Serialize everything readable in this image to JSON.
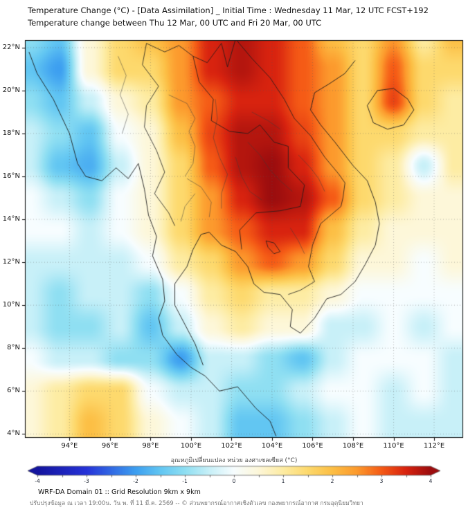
{
  "header": {
    "title_line1": "Temperature Change (°C) - [Data Assimilation] _ Initial Time : Wednesday 11 Mar, 12 UTC FCST+192",
    "title_line2": "Temperature change between Thu 12 Mar, 00 UTC and Fri 20 Mar, 00 UTC"
  },
  "footer": {
    "line1": "WRF-DA Domain 01 :: Grid Resolution 9km x 9km",
    "line2": "ปรับปรุงข้อมูล ณ เวลา 19:00น. วัน พ. ที่ 11 มี.ค. 2569 -- © ส่วนพยากรณ์อากาศเชิงตัวเลข กองพยากรณ์อากาศ กรมอุตุนิยมวิทยา"
  },
  "chart_data": {
    "type": "heatmap",
    "title": "Temperature Change (°C) - [Data Assimilation] _ Initial Time : Wednesday 11 Mar, 12 UTC FCST+192",
    "subtitle": "Temperature change between Thu 12 Mar, 00 UTC and Fri 20 Mar, 00 UTC",
    "units": "°C",
    "grid_on": true,
    "x_axis": {
      "label": "",
      "tick_suffix": "°E",
      "ticks": [
        94,
        96,
        98,
        100,
        102,
        104,
        106,
        108,
        110,
        112
      ],
      "range": [
        91.8,
        113.4
      ]
    },
    "y_axis": {
      "label": "",
      "tick_suffix": "°N",
      "ticks": [
        4,
        6,
        8,
        10,
        12,
        14,
        16,
        18,
        20,
        22
      ],
      "range": [
        3.85,
        22.35
      ]
    },
    "grid": {
      "lons": [
        92,
        93.5,
        95,
        96.5,
        98,
        99.5,
        101,
        102.5,
        104,
        105.5,
        107,
        108.5,
        110,
        111.5,
        113
      ],
      "lats": [
        22.5,
        21,
        19.5,
        18,
        16.5,
        15,
        13.5,
        12,
        10.5,
        9,
        7.5,
        6,
        4.5,
        3
      ]
    },
    "values": [
      [
        -1.0,
        -1.5,
        0.5,
        1.5,
        2.0,
        2.5,
        3.5,
        3.8,
        3.5,
        3.0,
        2.0,
        1.5,
        2.5,
        1.0,
        2.0
      ],
      [
        -1.5,
        -2.0,
        0.5,
        1.5,
        1.5,
        2.5,
        3.5,
        3.8,
        3.5,
        3.0,
        2.5,
        1.5,
        3.0,
        1.5,
        1.5
      ],
      [
        -1.0,
        -1.5,
        -0.5,
        0.5,
        1.0,
        2.5,
        3.0,
        3.5,
        3.5,
        3.0,
        2.5,
        1.5,
        3.2,
        1.5,
        1.0
      ],
      [
        -0.5,
        -1.0,
        -1.5,
        0.0,
        0.5,
        2.0,
        3.2,
        3.8,
        3.8,
        3.2,
        2.5,
        1.5,
        1.5,
        1.0,
        1.0
      ],
      [
        -0.5,
        -1.5,
        -1.8,
        -0.5,
        0.5,
        1.5,
        3.0,
        3.8,
        4.0,
        3.5,
        2.5,
        1.5,
        1.0,
        -0.5,
        1.0
      ],
      [
        0.0,
        -0.5,
        -1.0,
        0.0,
        0.5,
        1.5,
        2.5,
        3.5,
        4.0,
        3.8,
        3.0,
        1.5,
        1.0,
        0.5,
        0.5
      ],
      [
        0.0,
        0.0,
        -0.5,
        0.0,
        0.5,
        1.5,
        2.5,
        3.0,
        3.5,
        3.5,
        2.0,
        1.0,
        0.5,
        0.5,
        0.5
      ],
      [
        -0.5,
        -0.5,
        -0.5,
        -0.5,
        0.0,
        1.0,
        1.5,
        2.5,
        3.0,
        2.5,
        1.5,
        0.5,
        0.5,
        0.0,
        0.5
      ],
      [
        -0.5,
        -1.0,
        -0.5,
        -0.5,
        -1.0,
        0.0,
        1.0,
        1.5,
        1.0,
        1.0,
        0.5,
        0.0,
        0.0,
        0.0,
        0.0
      ],
      [
        -0.5,
        -1.0,
        -1.0,
        -0.5,
        -1.5,
        -0.5,
        0.5,
        1.0,
        0.5,
        0.5,
        -0.5,
        -0.5,
        0.0,
        -0.5,
        0.0
      ],
      [
        0.0,
        -0.5,
        -0.5,
        -1.0,
        -1.0,
        -2.0,
        -0.5,
        -0.5,
        -1.0,
        -1.5,
        -0.5,
        0.0,
        0.0,
        0.0,
        -0.5
      ],
      [
        0.5,
        1.0,
        1.5,
        1.5,
        0.0,
        -0.5,
        -0.5,
        -1.0,
        -1.0,
        -0.5,
        0.0,
        0.0,
        -0.5,
        0.0,
        -0.5
      ],
      [
        0.5,
        1.0,
        2.0,
        1.5,
        0.5,
        0.0,
        -0.5,
        -1.5,
        -1.5,
        -1.0,
        -0.5,
        0.0,
        -0.5,
        -0.5,
        -0.5
      ],
      [
        0.5,
        1.0,
        2.0,
        1.5,
        0.5,
        0.0,
        -0.5,
        -1.5,
        -1.5,
        -1.0,
        -0.5,
        0.0,
        -0.5,
        -0.5,
        -0.5
      ]
    ],
    "colorbar": {
      "label": "อุณหภูมิเปลี่ยนแปลง หน่วย องศาเซลเซียส (°C)",
      "min": -4,
      "max": 4,
      "ticks": [
        -4,
        -3,
        -2,
        -1,
        0,
        1,
        2,
        3,
        4
      ],
      "stops": [
        [
          -4.0,
          "#14149e"
        ],
        [
          -3.0,
          "#2633d8"
        ],
        [
          -2.0,
          "#3d9ff0"
        ],
        [
          -1.5,
          "#62c6f2"
        ],
        [
          -1.0,
          "#8fdff2"
        ],
        [
          -0.5,
          "#c8f0f8"
        ],
        [
          0.0,
          "#f7fdff"
        ],
        [
          0.5,
          "#fdf7d9"
        ],
        [
          1.0,
          "#fdeca3"
        ],
        [
          1.5,
          "#fdd96d"
        ],
        [
          2.0,
          "#fcbf45"
        ],
        [
          2.5,
          "#fc9a2d"
        ],
        [
          3.0,
          "#f55b16"
        ],
        [
          3.5,
          "#d8230f"
        ],
        [
          4.0,
          "#9c0d0e"
        ]
      ]
    },
    "map_outline": {
      "coastlines": [
        [
          [
            92.0,
            21.8
          ],
          [
            92.4,
            20.8
          ],
          [
            93.2,
            19.6
          ],
          [
            94.0,
            18.0
          ],
          [
            94.4,
            16.6
          ],
          [
            94.8,
            16.0
          ],
          [
            95.6,
            15.8
          ],
          [
            96.3,
            16.4
          ],
          [
            96.9,
            15.9
          ],
          [
            97.4,
            16.6
          ],
          [
            97.7,
            15.4
          ],
          [
            97.9,
            14.2
          ],
          [
            98.3,
            13.2
          ],
          [
            98.1,
            12.3
          ],
          [
            98.6,
            11.2
          ],
          [
            98.7,
            10.2
          ],
          [
            98.4,
            9.4
          ],
          [
            98.6,
            8.6
          ],
          [
            99.3,
            7.7
          ],
          [
            100.0,
            7.1
          ],
          [
            100.7,
            6.7
          ],
          [
            101.4,
            6.0
          ],
          [
            102.3,
            6.2
          ],
          [
            103.2,
            5.2
          ],
          [
            103.9,
            4.6
          ],
          [
            104.2,
            3.9
          ]
        ],
        [
          [
            100.6,
            7.2
          ],
          [
            100.2,
            8.2
          ],
          [
            99.7,
            9.1
          ],
          [
            99.2,
            10.0
          ],
          [
            99.2,
            11.0
          ],
          [
            99.8,
            11.8
          ],
          [
            100.1,
            12.6
          ],
          [
            100.5,
            13.3
          ],
          [
            100.9,
            13.4
          ],
          [
            101.5,
            12.8
          ],
          [
            102.2,
            12.5
          ],
          [
            102.8,
            11.8
          ],
          [
            103.1,
            11.0
          ],
          [
            103.6,
            10.6
          ],
          [
            104.4,
            10.5
          ],
          [
            105.0,
            9.8
          ],
          [
            104.9,
            9.0
          ],
          [
            105.4,
            8.7
          ],
          [
            106.1,
            9.4
          ],
          [
            106.7,
            10.3
          ],
          [
            107.4,
            10.5
          ],
          [
            108.1,
            11.1
          ],
          [
            108.6,
            11.9
          ],
          [
            109.1,
            12.8
          ],
          [
            109.3,
            13.8
          ],
          [
            109.1,
            14.8
          ],
          [
            108.7,
            15.8
          ],
          [
            108.0,
            16.5
          ],
          [
            107.1,
            17.6
          ],
          [
            106.4,
            18.4
          ],
          [
            105.9,
            19.1
          ],
          [
            106.1,
            19.9
          ],
          [
            106.8,
            20.3
          ],
          [
            107.6,
            20.8
          ],
          [
            108.1,
            21.4
          ]
        ],
        [
          [
            108.7,
            19.3
          ],
          [
            109.2,
            20.0
          ],
          [
            110.0,
            20.1
          ],
          [
            110.7,
            19.6
          ],
          [
            111.0,
            19.1
          ],
          [
            110.5,
            18.4
          ],
          [
            109.7,
            18.2
          ],
          [
            109.0,
            18.5
          ],
          [
            108.7,
            19.3
          ]
        ]
      ],
      "borders": [
        [
          [
            97.8,
            22.2
          ],
          [
            97.6,
            21.2
          ],
          [
            98.4,
            20.2
          ],
          [
            97.8,
            19.3
          ],
          [
            97.7,
            18.3
          ],
          [
            98.3,
            17.2
          ],
          [
            98.7,
            16.2
          ],
          [
            98.2,
            15.2
          ],
          [
            98.9,
            14.3
          ],
          [
            99.2,
            13.7
          ]
        ],
        [
          [
            100.1,
            21.6
          ],
          [
            100.4,
            20.4
          ],
          [
            101.1,
            19.6
          ],
          [
            101.0,
            18.6
          ],
          [
            101.9,
            18.1
          ],
          [
            102.8,
            18.0
          ],
          [
            103.4,
            18.4
          ],
          [
            104.1,
            17.6
          ],
          [
            104.8,
            17.4
          ],
          [
            104.8,
            16.4
          ],
          [
            105.6,
            15.6
          ],
          [
            105.4,
            14.6
          ]
        ],
        [
          [
            105.4,
            14.6
          ],
          [
            104.4,
            14.4
          ],
          [
            103.2,
            14.3
          ],
          [
            102.4,
            13.5
          ],
          [
            102.5,
            12.6
          ]
        ],
        [
          [
            102.2,
            22.4
          ],
          [
            103.0,
            21.5
          ],
          [
            103.9,
            20.6
          ],
          [
            104.6,
            19.6
          ],
          [
            105.1,
            18.7
          ],
          [
            105.9,
            17.9
          ],
          [
            106.6,
            16.9
          ],
          [
            107.3,
            16.1
          ],
          [
            107.6,
            15.7
          ],
          [
            107.5,
            15.0
          ],
          [
            107.4,
            14.6
          ]
        ],
        [
          [
            107.4,
            14.6
          ],
          [
            106.4,
            13.8
          ],
          [
            106.0,
            12.8
          ],
          [
            105.8,
            11.8
          ],
          [
            106.1,
            11.1
          ],
          [
            105.4,
            10.7
          ],
          [
            104.8,
            10.5
          ]
        ],
        [
          [
            97.8,
            22.2
          ],
          [
            98.7,
            21.8
          ],
          [
            99.4,
            22.1
          ],
          [
            100.1,
            21.6
          ],
          [
            100.8,
            21.3
          ],
          [
            101.5,
            22.2
          ],
          [
            101.8,
            21.1
          ],
          [
            102.2,
            22.4
          ]
        ],
        [
          [
            103.7,
            13.0
          ],
          [
            104.1,
            12.9
          ],
          [
            104.4,
            12.5
          ],
          [
            104.1,
            12.4
          ],
          [
            103.8,
            12.7
          ],
          [
            103.7,
            13.0
          ]
        ]
      ],
      "province_lines": [
        [
          [
            98.9,
            19.8
          ],
          [
            99.8,
            19.4
          ],
          [
            100.2,
            18.7
          ],
          [
            99.9,
            18.1
          ],
          [
            100.2,
            17.4
          ],
          [
            100.1,
            16.6
          ],
          [
            99.7,
            16.0
          ]
        ],
        [
          [
            101.2,
            19.6
          ],
          [
            101.3,
            18.7
          ],
          [
            101.1,
            17.8
          ],
          [
            101.4,
            16.9
          ],
          [
            101.8,
            16.1
          ],
          [
            101.5,
            15.2
          ],
          [
            101.5,
            14.5
          ]
        ],
        [
          [
            102.8,
            17.6
          ],
          [
            103.4,
            17.0
          ],
          [
            103.9,
            16.3
          ],
          [
            104.4,
            15.8
          ],
          [
            105.0,
            15.3
          ]
        ],
        [
          [
            99.8,
            15.9
          ],
          [
            100.5,
            15.5
          ],
          [
            101.0,
            14.8
          ],
          [
            100.9,
            14.1
          ]
        ],
        [
          [
            102.2,
            16.9
          ],
          [
            102.5,
            16.0
          ],
          [
            102.9,
            15.3
          ],
          [
            103.5,
            14.9
          ]
        ],
        [
          [
            103.0,
            19.0
          ],
          [
            103.8,
            18.6
          ],
          [
            104.4,
            18.2
          ]
        ],
        [
          [
            105.3,
            17.0
          ],
          [
            105.9,
            16.4
          ],
          [
            106.3,
            15.9
          ],
          [
            106.6,
            15.3
          ]
        ],
        [
          [
            100.2,
            15.2
          ],
          [
            99.7,
            14.6
          ],
          [
            99.5,
            13.9
          ]
        ],
        [
          [
            104.9,
            13.6
          ],
          [
            105.3,
            13.0
          ],
          [
            105.6,
            12.4
          ]
        ],
        [
          [
            96.4,
            21.6
          ],
          [
            96.8,
            20.7
          ],
          [
            96.5,
            19.8
          ],
          [
            96.9,
            18.9
          ],
          [
            96.6,
            18.0
          ]
        ]
      ]
    }
  }
}
